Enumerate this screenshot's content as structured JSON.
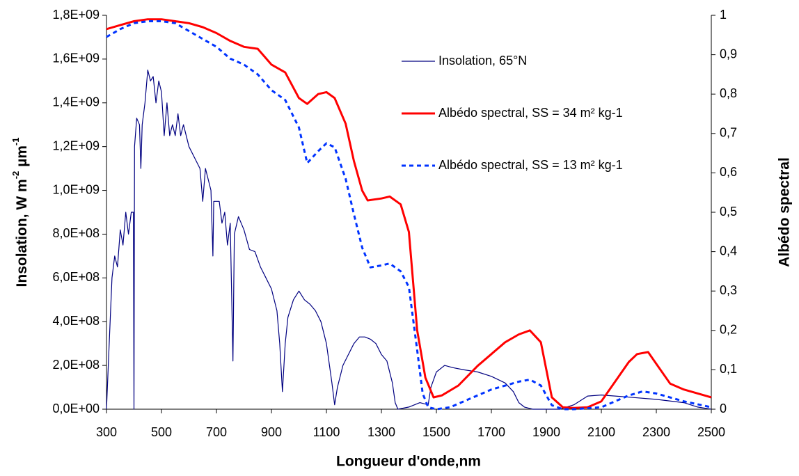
{
  "chart_data": {
    "type": "line",
    "xlabel": "Longueur d'onde,nm",
    "ylabel": [
      "Insolation, W m",
      "-2",
      " µm",
      "-1"
    ],
    "y2label": "Albédo spectral",
    "xlim": [
      300,
      2500
    ],
    "xticks": [
      300,
      500,
      700,
      900,
      1100,
      1300,
      1500,
      1700,
      1900,
      2100,
      2300,
      2500
    ],
    "ylim": [
      0,
      1800000000.0
    ],
    "yticks": [
      {
        "value": 0,
        "label": "0,0E+00"
      },
      {
        "value": 200000000.0,
        "label": "2,0E+08"
      },
      {
        "value": 400000000.0,
        "label": "4,0E+08"
      },
      {
        "value": 600000000.0,
        "label": "6,0E+08"
      },
      {
        "value": 800000000.0,
        "label": "8,0E+08"
      },
      {
        "value": 1000000000.0,
        "label": "1,0E+09"
      },
      {
        "value": 1200000000.0,
        "label": "1,2E+09"
      },
      {
        "value": 1400000000.0,
        "label": "1,4E+09"
      },
      {
        "value": 1600000000.0,
        "label": "1,6E+09"
      },
      {
        "value": 1800000000.0,
        "label": "1,8E+09"
      }
    ],
    "y2lim": [
      0,
      1
    ],
    "y2ticks": [
      0,
      {
        "value": 0.1,
        "label": "0,1"
      },
      {
        "value": 0.2,
        "label": "0,2"
      },
      {
        "value": 0.3,
        "label": "0,3"
      },
      {
        "value": 0.4,
        "label": "0,4"
      },
      {
        "value": 0.5,
        "label": "0,5"
      },
      {
        "value": 0.6,
        "label": "0,6"
      },
      {
        "value": 0.7,
        "label": "0,7"
      },
      {
        "value": 0.8,
        "label": "0,8"
      },
      {
        "value": 0.9,
        "label": "0,9"
      },
      1
    ],
    "grid": false,
    "series": [
      {
        "name": "Insolation, 65°N",
        "color": "#000080",
        "dash": false,
        "width": 1.2,
        "x": [
          300,
          310,
          320,
          330,
          340,
          350,
          360,
          370,
          380,
          390,
          398,
          400,
          402,
          410,
          420,
          425,
          430,
          440,
          450,
          460,
          470,
          480,
          490,
          500,
          510,
          520,
          530,
          540,
          550,
          560,
          570,
          580,
          600,
          620,
          640,
          650,
          660,
          680,
          687,
          690,
          710,
          720,
          730,
          740,
          750,
          760,
          765,
          780,
          800,
          820,
          840,
          860,
          880,
          900,
          920,
          930,
          940,
          950,
          960,
          980,
          1000,
          1020,
          1040,
          1060,
          1080,
          1100,
          1120,
          1130,
          1140,
          1160,
          1180,
          1200,
          1220,
          1240,
          1260,
          1280,
          1300,
          1320,
          1340,
          1350,
          1360,
          1400,
          1440,
          1470,
          1480,
          1500,
          1530,
          1560,
          1600,
          1650,
          1700,
          1750,
          1780,
          1800,
          1820,
          1850,
          1950,
          2000,
          2050,
          2100,
          2150,
          2200,
          2300,
          2400,
          2450,
          2500
        ],
        "values": [
          0,
          300000000.0,
          600000000.0,
          700000000.0,
          650000000.0,
          820000000.0,
          750000000.0,
          900000000.0,
          800000000.0,
          900000000.0,
          900000000.0,
          0,
          1200000000.0,
          1330000000.0,
          1300000000.0,
          1100000000.0,
          1300000000.0,
          1400000000.0,
          1550000000.0,
          1500000000.0,
          1520000000.0,
          1400000000.0,
          1500000000.0,
          1450000000.0,
          1250000000.0,
          1400000000.0,
          1250000000.0,
          1300000000.0,
          1250000000.0,
          1350000000.0,
          1250000000.0,
          1300000000.0,
          1200000000.0,
          1150000000.0,
          1100000000.0,
          950000000.0,
          1100000000.0,
          1000000000.0,
          700000000.0,
          950000000.0,
          950000000.0,
          850000000.0,
          900000000.0,
          750000000.0,
          850000000.0,
          220000000.0,
          800000000.0,
          880000000.0,
          820000000.0,
          730000000.0,
          720000000.0,
          650000000.0,
          600000000.0,
          550000000.0,
          450000000.0,
          300000000.0,
          80000000.0,
          300000000.0,
          420000000.0,
          500000000.0,
          540000000.0,
          500000000.0,
          480000000.0,
          450000000.0,
          400000000.0,
          300000000.0,
          120000000.0,
          20000000.0,
          100000000.0,
          200000000.0,
          250000000.0,
          300000000.0,
          330000000.0,
          330000000.0,
          320000000.0,
          300000000.0,
          250000000.0,
          220000000.0,
          120000000.0,
          30000000.0,
          0,
          10000000.0,
          30000000.0,
          20000000.0,
          100000000.0,
          170000000.0,
          200000000.0,
          190000000.0,
          180000000.0,
          170000000.0,
          150000000.0,
          120000000.0,
          80000000.0,
          30000000.0,
          10000000.0,
          0,
          0,
          20000000.0,
          60000000.0,
          65000000.0,
          60000000.0,
          55000000.0,
          45000000.0,
          30000000.0,
          10000000.0,
          0
        ]
      },
      {
        "name": "Albédo spectral, SS = 34 m² kg-1",
        "color": "#ff0000",
        "dash": false,
        "width": 3,
        "axis": "y2",
        "x": [
          300,
          350,
          400,
          450,
          500,
          550,
          600,
          650,
          700,
          750,
          800,
          850,
          900,
          950,
          1000,
          1030,
          1070,
          1100,
          1130,
          1170,
          1200,
          1230,
          1250,
          1300,
          1330,
          1370,
          1400,
          1430,
          1460,
          1490,
          1520,
          1580,
          1650,
          1700,
          1750,
          1800,
          1840,
          1880,
          1920,
          1960,
          2000,
          2050,
          2100,
          2150,
          2200,
          2230,
          2270,
          2300,
          2350,
          2400,
          2500
        ],
        "values": [
          0.965,
          0.975,
          0.985,
          0.99,
          0.99,
          0.985,
          0.98,
          0.97,
          0.955,
          0.935,
          0.92,
          0.915,
          0.875,
          0.855,
          0.79,
          0.775,
          0.8,
          0.805,
          0.79,
          0.725,
          0.63,
          0.555,
          0.53,
          0.535,
          0.54,
          0.52,
          0.45,
          0.2,
          0.08,
          0.03,
          0.035,
          0.06,
          0.11,
          0.14,
          0.17,
          0.19,
          0.2,
          0.17,
          0.03,
          0.005,
          0.003,
          0.005,
          0.02,
          0.07,
          0.12,
          0.14,
          0.145,
          0.115,
          0.065,
          0.05,
          0.03
        ]
      },
      {
        "name": "Albédo spectral, SS = 13 m² kg-1",
        "color": "#0033ff",
        "dash": true,
        "width": 3,
        "axis": "y2",
        "x": [
          300,
          350,
          400,
          450,
          500,
          550,
          600,
          650,
          700,
          750,
          800,
          850,
          900,
          950,
          1000,
          1030,
          1070,
          1100,
          1130,
          1170,
          1200,
          1230,
          1260,
          1300,
          1330,
          1370,
          1400,
          1430,
          1450,
          1470,
          1500,
          1550,
          1600,
          1700,
          1800,
          1840,
          1880,
          1920,
          1960,
          2000,
          2100,
          2150,
          2200,
          2250,
          2300,
          2400,
          2500
        ],
        "values": [
          0.945,
          0.965,
          0.98,
          0.985,
          0.985,
          0.98,
          0.96,
          0.94,
          0.92,
          0.89,
          0.875,
          0.85,
          0.81,
          0.785,
          0.715,
          0.625,
          0.655,
          0.675,
          0.665,
          0.585,
          0.495,
          0.41,
          0.36,
          0.365,
          0.37,
          0.35,
          0.31,
          0.15,
          0.04,
          0.005,
          0,
          0.005,
          0.02,
          0.05,
          0.07,
          0.075,
          0.06,
          0.01,
          0,
          0,
          0.005,
          0.02,
          0.035,
          0.045,
          0.04,
          0.02,
          0.005
        ]
      }
    ]
  }
}
